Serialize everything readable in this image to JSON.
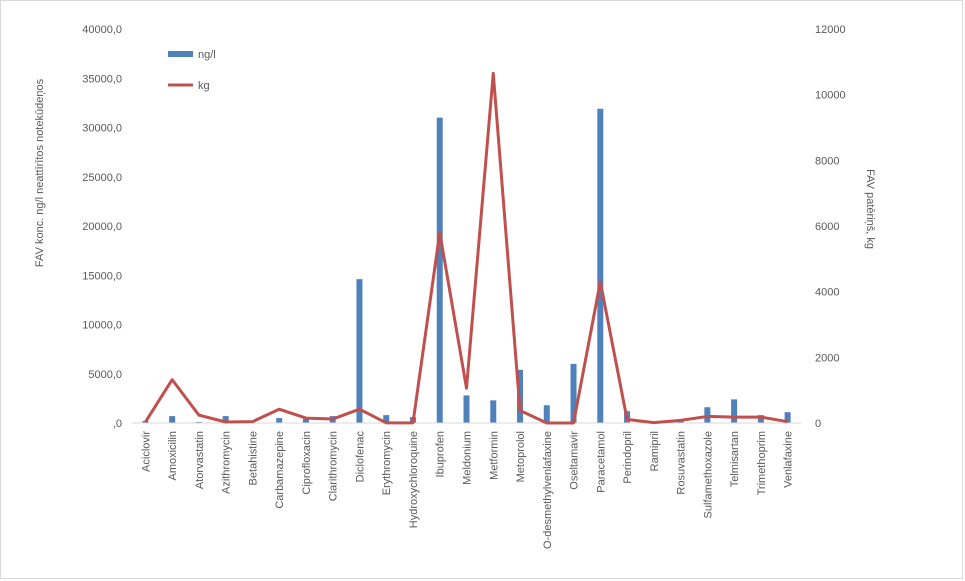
{
  "chart_data": {
    "type": "bar",
    "categories": [
      "Aciclovir",
      "Amoxicilin",
      "Atorvastatin",
      "Azithromycin",
      "Betahistine",
      "Carbamazepine",
      "Ciprofloxacin",
      "Clarithromycin",
      "Diclofenac",
      "Erythromycin",
      "Hydroxychloroquine",
      "Ibuprofen",
      "Meldonium",
      "Metformin",
      "Metoprolol",
      "O-desmethylvenlafaxine",
      "Oseltamavir",
      "Paracetamol",
      "Perindopril",
      "Ramipril",
      "Rosuvastatin",
      "Sulfamethoxazole",
      "Telmisartan",
      "Trimethoprim",
      "Venlafaxine"
    ],
    "series": [
      {
        "name": "ng/l",
        "type": "bar",
        "axis": "left",
        "color": "#4f81bd",
        "values": [
          200,
          700,
          100,
          700,
          50,
          500,
          400,
          700,
          14600,
          800,
          600,
          31000,
          2800,
          2300,
          5400,
          1800,
          6000,
          31900,
          1200,
          100,
          300,
          1600,
          2400,
          800,
          1100
        ]
      },
      {
        "name": "kg",
        "type": "line",
        "axis": "right",
        "color": "#c0504d",
        "values": [
          30,
          1320,
          240,
          30,
          40,
          420,
          150,
          120,
          420,
          5,
          5,
          5800,
          1060,
          10650,
          380,
          0,
          0,
          4300,
          110,
          10,
          80,
          200,
          180,
          180,
          40
        ]
      }
    ],
    "y_left": {
      "label": "FAV konc. ng/l neattīrītos notekūdeņos",
      "min": 0,
      "max": 40000,
      "step": 5000,
      "tick_labels": [
        ",0",
        "5000,0",
        "10000,0",
        "15000,0",
        "20000,0",
        "25000,0",
        "30000,0",
        "35000,0",
        "40000,0"
      ]
    },
    "y_right": {
      "label": "FAV patēriņš, kg",
      "min": 0,
      "max": 12000,
      "step": 2000,
      "tick_labels": [
        "0",
        "2000",
        "4000",
        "6000",
        "8000",
        "10000",
        "12000"
      ]
    },
    "legend": {
      "placement": "top-left"
    },
    "grid": false
  }
}
